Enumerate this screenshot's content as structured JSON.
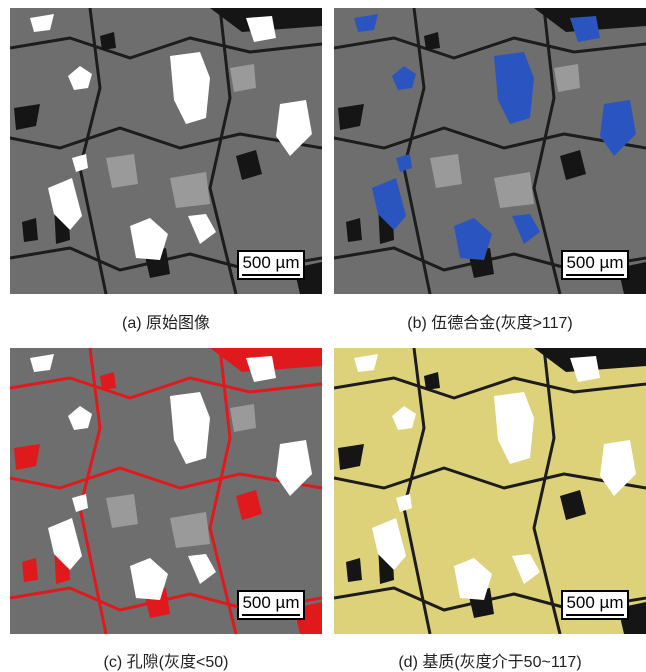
{
  "scale_bar_label": "500 µm",
  "panels": [
    {
      "id": "a",
      "caption": "(a) 原始图像"
    },
    {
      "id": "b",
      "caption": "(b) 伍德合金(灰度>117)",
      "overlay_color": "#2a55c0"
    },
    {
      "id": "c",
      "caption": "(c) 孔隙(灰度<50)",
      "overlay_color": "#e0191c"
    },
    {
      "id": "d",
      "caption": "(d) 基质(灰度介于50~117)",
      "overlay_color": "#ddd27a"
    }
  ],
  "colors": {
    "matrix_gray": "#6e6e6e",
    "pore_black": "#151515",
    "alloy_white": "#ffffff",
    "light_grain": "#9a9a9a"
  }
}
